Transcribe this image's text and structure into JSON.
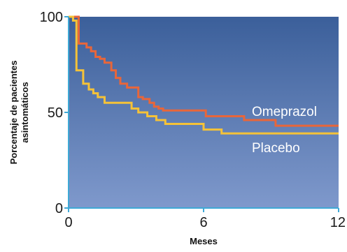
{
  "chart_data": {
    "type": "line",
    "title": "",
    "xlabel": "Meses",
    "ylabel_lines": [
      "Porcentaje de pacientes",
      "asintomáticos"
    ],
    "xlim": [
      0,
      12
    ],
    "ylim": [
      0,
      100
    ],
    "xticks": [
      0,
      6,
      12
    ],
    "yticks": [
      0,
      50,
      100
    ],
    "xtick_labels": [
      "0",
      "6",
      "12"
    ],
    "ytick_labels": [
      "0",
      "50",
      "100"
    ],
    "grid": false,
    "legend": "inline",
    "colors": {
      "plot_top": "#3b5f9a",
      "plot_bottom": "#7f99cc",
      "axis": "#3fa9d6"
    },
    "series": [
      {
        "name": "Omeprazol",
        "color": "#e8663a",
        "step": true,
        "x": [
          0,
          0.4,
          0.45,
          0.8,
          1.0,
          1.2,
          1.4,
          1.6,
          1.9,
          2.1,
          2.3,
          2.6,
          2.9,
          3.1,
          3.3,
          3.6,
          3.8,
          4.0,
          4.2,
          4.5,
          5.0,
          6.1,
          7.8,
          9.2,
          12
        ],
        "y": [
          100,
          100,
          86,
          84,
          82,
          79,
          78,
          76,
          72,
          68,
          65,
          63,
          63,
          58,
          57,
          55,
          53,
          52,
          51,
          51,
          51,
          48,
          46,
          43,
          43
        ]
      },
      {
        "name": "Placebo",
        "color": "#f5c238",
        "step": true,
        "x": [
          0,
          0.2,
          0.35,
          0.65,
          0.9,
          1.1,
          1.3,
          1.6,
          2.0,
          2.6,
          2.8,
          3.1,
          3.5,
          3.9,
          4.3,
          5.0,
          6.0,
          6.8,
          12
        ],
        "y": [
          100,
          98,
          72,
          65,
          62,
          60,
          58,
          55,
          55,
          55,
          52,
          50,
          48,
          46,
          44,
          44,
          41,
          39,
          39
        ]
      }
    ]
  }
}
